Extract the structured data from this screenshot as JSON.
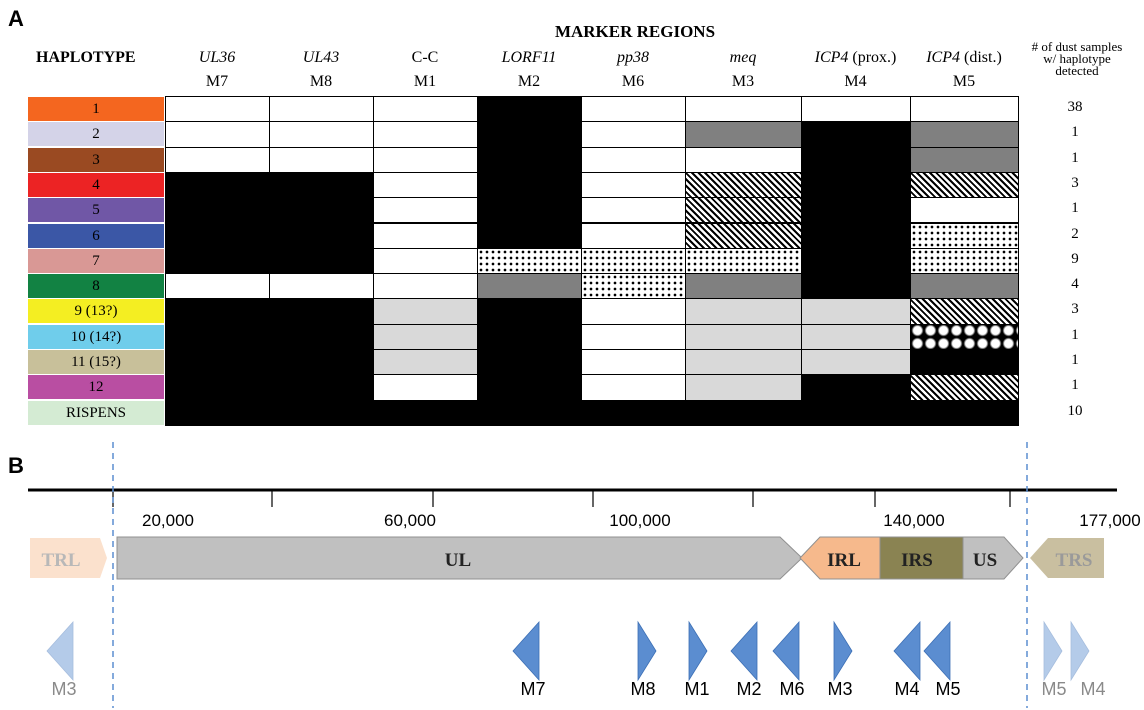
{
  "panel_a": {
    "letter": "A",
    "title": "MARKER REGIONS",
    "haplotype_header": "HAPLOTYPE",
    "count_header": [
      "# of dust samples",
      "w/ haplotype",
      "detected"
    ],
    "columns": [
      {
        "gene": "UL36",
        "gene_italic": true,
        "gene_suffix": "",
        "marker": "M7"
      },
      {
        "gene": "UL43",
        "gene_italic": true,
        "gene_suffix": "",
        "marker": "M8"
      },
      {
        "gene": "C-C",
        "gene_italic": false,
        "gene_suffix": "",
        "marker": "M1"
      },
      {
        "gene": "LORF11",
        "gene_italic": true,
        "gene_suffix": "",
        "marker": "M2"
      },
      {
        "gene": "pp38",
        "gene_italic": true,
        "gene_suffix": "",
        "marker": "M6"
      },
      {
        "gene": "meq",
        "gene_italic": true,
        "gene_suffix": "",
        "marker": "M3"
      },
      {
        "gene": "ICP4",
        "gene_italic": true,
        "gene_suffix": " (prox.)",
        "marker": "M4"
      },
      {
        "gene": "ICP4",
        "gene_italic": true,
        "gene_suffix": " (dist.)",
        "marker": "M5"
      }
    ],
    "rows": [
      {
        "label": "1",
        "color": "#f4661f",
        "count": "38",
        "cells": [
          "white",
          "white",
          "white",
          "black",
          "white",
          "white",
          "white",
          "white"
        ]
      },
      {
        "label": "2",
        "color": "#d4d3e8",
        "count": "1",
        "cells": [
          "white",
          "white",
          "white",
          "black",
          "white",
          "dgray",
          "black",
          "dgray"
        ]
      },
      {
        "label": "3",
        "color": "#9a4a22",
        "count": "1",
        "cells": [
          "white",
          "white",
          "white",
          "black",
          "white",
          "white",
          "black",
          "dgray"
        ]
      },
      {
        "label": "4",
        "color": "#ec2324",
        "count": "3",
        "cells": [
          "black",
          "black",
          "white",
          "black",
          "white",
          "diag",
          "black",
          "diag"
        ]
      },
      {
        "label": "5",
        "color": "#7057a6",
        "count": "1",
        "cells": [
          "black",
          "black",
          "white",
          "black",
          "white",
          "diag",
          "black",
          "white"
        ]
      },
      {
        "label": "6",
        "color": "#3b57a6",
        "count": "2",
        "cells": [
          "black",
          "black",
          "white",
          "black",
          "white",
          "diag",
          "black",
          "dots"
        ]
      },
      {
        "label": "7",
        "color": "#d99895",
        "count": "9",
        "cells": [
          "black",
          "black",
          "white",
          "dots",
          "dots",
          "dots",
          "black",
          "dots"
        ]
      },
      {
        "label": "8",
        "color": "#128243",
        "count": "4",
        "cells": [
          "white",
          "white",
          "white",
          "dgray",
          "dots",
          "dgray",
          "black",
          "dgray"
        ]
      },
      {
        "label": "9 (13?)",
        "color": "#f4ee22",
        "count": "3",
        "cells": [
          "black",
          "black",
          "lgray",
          "black",
          "white",
          "lgray",
          "lgray",
          "diag"
        ]
      },
      {
        "label": "10 (14?)",
        "color": "#6fcdeb",
        "count": "1",
        "cells": [
          "black",
          "black",
          "lgray",
          "black",
          "white",
          "lgray",
          "lgray",
          "check"
        ]
      },
      {
        "label": "11 (15?)",
        "color": "#c8c09a",
        "count": "1",
        "cells": [
          "black",
          "black",
          "lgray",
          "black",
          "white",
          "lgray",
          "lgray",
          "black"
        ]
      },
      {
        "label": "12",
        "color": "#b94ea2",
        "count": "1",
        "cells": [
          "black",
          "black",
          "white",
          "black",
          "white",
          "lgray",
          "black",
          "diag"
        ]
      },
      {
        "label": "RISPENS",
        "color": "#d4ebd3",
        "count": "10",
        "cells": [
          "black",
          "black",
          "black",
          "black",
          "black",
          "black",
          "black",
          "black"
        ]
      }
    ]
  },
  "panel_b": {
    "letter": "B",
    "tick_labels": [
      {
        "text": "20,000",
        "value": 20000
      },
      {
        "text": "60,000",
        "value": 60000
      },
      {
        "text": "100,000",
        "value": 100000
      },
      {
        "text": "140,000",
        "value": 140000
      },
      {
        "text": "177,000",
        "value": 177000
      }
    ],
    "segments": [
      "TRL",
      "UL",
      "IRL",
      "IRS",
      "US",
      "TRS"
    ],
    "segment_colors": {
      "TRL": "#fbe1cd",
      "UL": "#c0c0c0",
      "IRL": "#f6b98c",
      "IRS": "#8a8352",
      "US": "#c0c0c0",
      "TRS": "#c9bfa0"
    },
    "markers_main": [
      "M7",
      "M8",
      "M1",
      "M2",
      "M6",
      "M3",
      "M4",
      "M5"
    ],
    "markers_terminal_left": [
      "M3"
    ],
    "markers_terminal_right": [
      "M5",
      "M4"
    ],
    "marker_color": "#5b8dd0"
  }
}
